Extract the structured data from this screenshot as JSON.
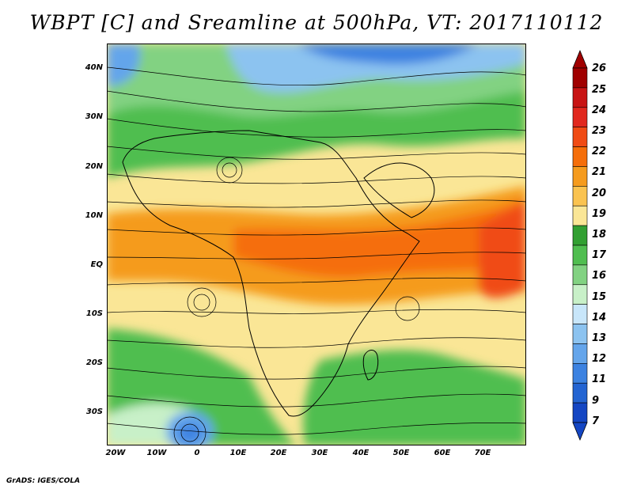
{
  "title": "WBPT [C] and Sreamline at 500hPa, VT: 2017110112",
  "credit": "GrADS: IGES/COLA",
  "lat_labels": [
    "40N",
    "30N",
    "20N",
    "10N",
    "EQ",
    "10S",
    "20S",
    "30S"
  ],
  "lon_labels": [
    "20W",
    "10W",
    "0",
    "10E",
    "20E",
    "30E",
    "40E",
    "50E",
    "60E",
    "70E"
  ],
  "colorbar": {
    "labels": [
      "26",
      "25",
      "24",
      "23",
      "22",
      "21",
      "20",
      "19",
      "18",
      "17",
      "16",
      "15",
      "14",
      "13",
      "12",
      "11",
      "9",
      "7"
    ],
    "colors": [
      "#a00000",
      "#c81414",
      "#e1281e",
      "#f04b14",
      "#f56e0a",
      "#f59b1e",
      "#fac350",
      "#fae696",
      "#32a032",
      "#50be50",
      "#82d282",
      "#c8f0c8",
      "#c8e6fa",
      "#8cc3f0",
      "#64a5eb",
      "#3c82e1",
      "#2364d2",
      "#1446c3"
    ]
  },
  "colors": {
    "cold_blue": "#3c82e1",
    "cool_green": "#50be50",
    "warm_yellow": "#fae696",
    "hot_orange": "#f56e0a"
  }
}
